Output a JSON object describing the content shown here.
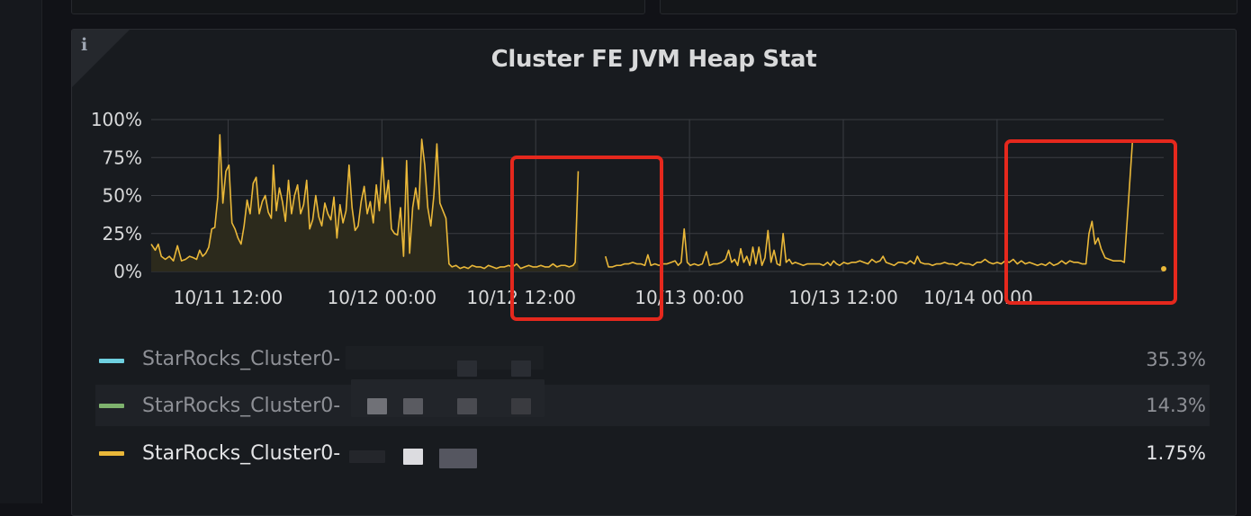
{
  "panel": {
    "title": "Cluster FE JVM Heap Stat",
    "info_icon": "i"
  },
  "colors": {
    "series_line": "#eab839",
    "series_fill": "#2c2a1c",
    "grid": "#3a3d42",
    "annotation_box": "#e5281d",
    "legend_blue": "#6ed0e0",
    "legend_green": "#7eb26d",
    "legend_yellow": "#eab839"
  },
  "legend": [
    {
      "name": "StarRocks_Cluster0-",
      "value": "35.3%",
      "color": "#6ed0e0",
      "faded": true
    },
    {
      "name": "StarRocks_Cluster0-",
      "value": "14.3%",
      "color": "#7eb26d",
      "faded": true
    },
    {
      "name": "StarRocks_Cluster0-",
      "value": "1.75%",
      "color": "#eab839",
      "faded": false
    }
  ],
  "chart_data": {
    "type": "area",
    "title": "Cluster FE JVM Heap Stat",
    "xlabel": "",
    "ylabel": "",
    "y_tick_labels": [
      "0%",
      "25%",
      "50%",
      "75%",
      "100%"
    ],
    "ylim": [
      0,
      100
    ],
    "x_tick_labels": [
      "10/11 12:00",
      "10/12 00:00",
      "10/12 12:00",
      "10/13 00:00",
      "10/13 12:00",
      "10/14 00:00"
    ],
    "x_range_hours": [
      0,
      79
    ],
    "grid": true,
    "series": [
      {
        "name": "StarRocks_Cluster0-",
        "color": "#eab839",
        "filled_until_hour": 32,
        "segments": [
          [
            [
              0,
              18
            ],
            [
              0.4,
              14
            ],
            [
              0.7,
              18
            ],
            [
              1.0,
              10
            ],
            [
              1.4,
              8
            ],
            [
              1.8,
              10
            ],
            [
              2.2,
              7
            ],
            [
              2.6,
              17
            ],
            [
              3.0,
              7
            ],
            [
              3.4,
              8
            ],
            [
              3.8,
              10
            ],
            [
              4.2,
              9
            ],
            [
              4.5,
              8
            ],
            [
              4.8,
              14
            ],
            [
              5.1,
              10
            ],
            [
              5.4,
              12
            ],
            [
              5.7,
              16
            ],
            [
              6.0,
              28
            ],
            [
              6.3,
              29
            ],
            [
              6.6,
              49
            ],
            [
              6.8,
              90
            ],
            [
              7.1,
              45
            ],
            [
              7.4,
              66
            ],
            [
              7.7,
              70
            ],
            [
              8.0,
              32
            ],
            [
              8.3,
              28
            ],
            [
              8.6,
              22
            ],
            [
              8.9,
              18
            ],
            [
              9.2,
              30
            ],
            [
              9.5,
              47
            ],
            [
              9.8,
              38
            ],
            [
              10.1,
              58
            ],
            [
              10.4,
              62
            ],
            [
              10.7,
              38
            ],
            [
              11.0,
              46
            ],
            [
              11.3,
              50
            ],
            [
              11.6,
              39
            ],
            [
              11.9,
              35
            ],
            [
              12.1,
              70
            ],
            [
              12.4,
              40
            ],
            [
              12.7,
              55
            ],
            [
              13.0,
              46
            ],
            [
              13.3,
              33
            ],
            [
              13.6,
              60
            ],
            [
              13.9,
              38
            ],
            [
              14.2,
              50
            ],
            [
              14.5,
              57
            ],
            [
              14.8,
              38
            ],
            [
              15.1,
              44
            ],
            [
              15.4,
              60
            ],
            [
              15.7,
              28
            ],
            [
              16.0,
              34
            ],
            [
              16.3,
              50
            ],
            [
              16.6,
              36
            ],
            [
              16.9,
              30
            ],
            [
              17.2,
              45
            ],
            [
              17.5,
              38
            ],
            [
              17.8,
              34
            ],
            [
              18.1,
              49
            ],
            [
              18.4,
              22
            ],
            [
              18.7,
              44
            ],
            [
              19.0,
              32
            ],
            [
              19.3,
              40
            ],
            [
              19.6,
              70
            ],
            [
              19.9,
              42
            ],
            [
              20.2,
              27
            ],
            [
              20.5,
              30
            ],
            [
              20.8,
              46
            ],
            [
              21.1,
              56
            ],
            [
              21.4,
              38
            ],
            [
              21.7,
              46
            ],
            [
              22.0,
              32
            ],
            [
              22.3,
              57
            ],
            [
              22.6,
              40
            ],
            [
              22.9,
              75
            ],
            [
              23.2,
              45
            ],
            [
              23.5,
              60
            ],
            [
              23.8,
              28
            ],
            [
              24.1,
              25
            ],
            [
              24.4,
              24
            ],
            [
              24.7,
              42
            ],
            [
              25.0,
              10
            ],
            [
              25.3,
              73
            ],
            [
              25.6,
              12
            ],
            [
              25.9,
              42
            ],
            [
              26.2,
              55
            ],
            [
              26.5,
              41
            ],
            [
              26.8,
              87
            ],
            [
              27.1,
              70
            ],
            [
              27.4,
              42
            ],
            [
              27.7,
              30
            ],
            [
              28.0,
              50
            ],
            [
              28.3,
              84
            ],
            [
              28.6,
              45
            ],
            [
              28.9,
              40
            ],
            [
              29.2,
              35
            ],
            [
              29.5,
              5
            ],
            [
              29.8,
              3
            ],
            [
              30.2,
              4
            ],
            [
              30.6,
              2
            ],
            [
              31.0,
              3
            ],
            [
              31.4,
              2
            ],
            [
              31.8,
              4
            ],
            [
              32.2,
              3
            ],
            [
              32.6,
              3
            ],
            [
              33.0,
              2
            ],
            [
              33.4,
              4
            ],
            [
              33.8,
              3
            ],
            [
              34.2,
              2
            ],
            [
              34.6,
              3
            ],
            [
              35.0,
              3
            ],
            [
              35.4,
              4
            ],
            [
              35.8,
              3
            ],
            [
              36.2,
              5
            ],
            [
              36.6,
              2
            ],
            [
              37.0,
              3
            ],
            [
              37.4,
              4
            ],
            [
              37.8,
              3
            ],
            [
              38.2,
              3
            ],
            [
              38.6,
              4
            ],
            [
              39.0,
              3
            ],
            [
              39.4,
              3
            ],
            [
              39.8,
              5
            ],
            [
              40.2,
              3
            ],
            [
              40.6,
              4
            ],
            [
              41.0,
              4
            ],
            [
              41.4,
              3
            ],
            [
              41.8,
              4
            ],
            [
              42.0,
              6
            ],
            [
              42.3,
              66
            ]
          ],
          [
            [
              45.0,
              10
            ],
            [
              45.3,
              3
            ],
            [
              45.7,
              3
            ],
            [
              46.1,
              4
            ],
            [
              46.5,
              4
            ],
            [
              46.9,
              5
            ],
            [
              47.3,
              5
            ],
            [
              47.7,
              6
            ],
            [
              48.1,
              5
            ],
            [
              48.5,
              5
            ],
            [
              48.9,
              4
            ],
            [
              49.2,
              11
            ],
            [
              49.5,
              4
            ],
            [
              49.9,
              5
            ],
            [
              50.3,
              4
            ],
            [
              50.7,
              5
            ],
            [
              51.1,
              5
            ],
            [
              51.5,
              6
            ],
            [
              51.9,
              7
            ],
            [
              52.2,
              4
            ],
            [
              52.5,
              6
            ],
            [
              52.8,
              28
            ],
            [
              53.1,
              6
            ],
            [
              53.4,
              4
            ],
            [
              53.8,
              5
            ],
            [
              54.2,
              4
            ],
            [
              54.6,
              5
            ],
            [
              55.0,
              13
            ],
            [
              55.3,
              4
            ],
            [
              55.7,
              5
            ],
            [
              56.1,
              5
            ],
            [
              56.5,
              6
            ],
            [
              56.9,
              8
            ],
            [
              57.2,
              14
            ],
            [
              57.5,
              6
            ],
            [
              57.8,
              8
            ],
            [
              58.1,
              4
            ],
            [
              58.4,
              15
            ],
            [
              58.7,
              6
            ],
            [
              59.0,
              10
            ],
            [
              59.3,
              4
            ],
            [
              59.6,
              16
            ],
            [
              59.9,
              5
            ],
            [
              60.2,
              16
            ],
            [
              60.5,
              4
            ],
            [
              60.8,
              9
            ],
            [
              61.1,
              27
            ],
            [
              61.4,
              6
            ],
            [
              61.7,
              14
            ],
            [
              62.0,
              5
            ],
            [
              62.3,
              4
            ],
            [
              62.6,
              25
            ],
            [
              62.9,
              6
            ],
            [
              63.2,
              8
            ],
            [
              63.5,
              5
            ],
            [
              63.8,
              6
            ],
            [
              64.2,
              5
            ],
            [
              64.6,
              4
            ],
            [
              65.0,
              5
            ],
            [
              65.4,
              5
            ],
            [
              65.8,
              5
            ],
            [
              66.2,
              5
            ],
            [
              66.6,
              4
            ],
            [
              67.0,
              6
            ],
            [
              67.3,
              4
            ],
            [
              67.6,
              7
            ],
            [
              67.9,
              5
            ],
            [
              68.2,
              4
            ],
            [
              68.6,
              6
            ],
            [
              69.0,
              5
            ],
            [
              69.4,
              6
            ],
            [
              69.8,
              6
            ],
            [
              70.2,
              7
            ],
            [
              70.6,
              6
            ],
            [
              71.0,
              5
            ],
            [
              71.4,
              8
            ],
            [
              71.8,
              6
            ],
            [
              72.2,
              7
            ],
            [
              72.5,
              10
            ],
            [
              72.8,
              6
            ],
            [
              73.2,
              5
            ],
            [
              73.6,
              4
            ],
            [
              74.0,
              6
            ],
            [
              74.4,
              6
            ],
            [
              74.8,
              5
            ],
            [
              75.2,
              7
            ],
            [
              75.6,
              5
            ],
            [
              75.9,
              10
            ],
            [
              76.2,
              6
            ],
            [
              76.6,
              5
            ],
            [
              77.0,
              5
            ],
            [
              77.4,
              4
            ],
            [
              77.8,
              5
            ],
            [
              78.2,
              5
            ],
            [
              78.6,
              6
            ],
            [
              79.0,
              5
            ],
            [
              79.4,
              5
            ],
            [
              79.8,
              4
            ],
            [
              80.2,
              6
            ],
            [
              80.6,
              5
            ],
            [
              81.0,
              5
            ],
            [
              81.4,
              4
            ],
            [
              81.8,
              6
            ],
            [
              82.2,
              6
            ],
            [
              82.6,
              8
            ],
            [
              83.0,
              6
            ],
            [
              83.4,
              5
            ],
            [
              83.8,
              6
            ],
            [
              84.2,
              5
            ],
            [
              84.6,
              7
            ],
            [
              85.0,
              6
            ],
            [
              85.4,
              8
            ],
            [
              85.8,
              5
            ],
            [
              86.2,
              7
            ],
            [
              86.6,
              5
            ],
            [
              87.0,
              6
            ],
            [
              87.4,
              5
            ],
            [
              87.8,
              4
            ],
            [
              88.2,
              5
            ],
            [
              88.6,
              4
            ],
            [
              89.0,
              6
            ],
            [
              89.4,
              4
            ],
            [
              89.8,
              5
            ],
            [
              90.2,
              7
            ],
            [
              90.6,
              5
            ],
            [
              91.0,
              7
            ],
            [
              91.4,
              6
            ],
            [
              91.8,
              6
            ],
            [
              92.2,
              5
            ],
            [
              92.6,
              5
            ],
            [
              92.9,
              25
            ],
            [
              93.2,
              33
            ],
            [
              93.5,
              18
            ],
            [
              93.8,
              22
            ],
            [
              94.1,
              15
            ],
            [
              94.5,
              9
            ],
            [
              94.9,
              8
            ],
            [
              95.3,
              7
            ],
            [
              95.7,
              7
            ],
            [
              96.1,
              7
            ],
            [
              96.4,
              6
            ],
            [
              96.8,
              45
            ],
            [
              97.2,
              85
            ]
          ],
          [
            [
              100.3,
              1.75
            ]
          ]
        ]
      }
    ],
    "annotations": [
      {
        "type": "box",
        "from_hour": 32,
        "to_hour": 45
      },
      {
        "type": "box",
        "from_hour": 73,
        "to_hour": 86
      }
    ]
  }
}
